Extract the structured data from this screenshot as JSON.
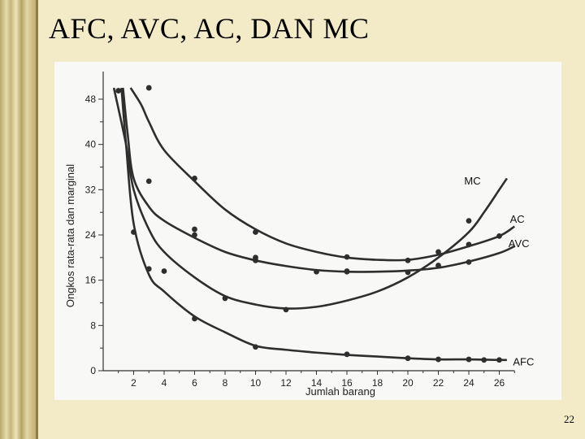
{
  "slide": {
    "title": "AFC, AVC, AC, DAN MC",
    "page_number": "22"
  },
  "chart_data": {
    "type": "line",
    "title": "",
    "xlabel": "Jumlah barang",
    "ylabel": "Ongkos rata-rata dan marginal",
    "xlim": [
      0,
      27
    ],
    "ylim": [
      0,
      50
    ],
    "x_ticks": [
      2,
      4,
      6,
      8,
      10,
      12,
      14,
      16,
      18,
      20,
      22,
      24,
      26
    ],
    "y_ticks": [
      0,
      8,
      16,
      24,
      32,
      40,
      48
    ],
    "grid": false,
    "series": [
      {
        "name": "MC",
        "color": "#2e2e2e",
        "curve": [
          [
            0.7,
            50
          ],
          [
            1.5,
            40
          ],
          [
            2,
            32
          ],
          [
            3,
            25
          ],
          [
            4,
            21
          ],
          [
            6,
            16.5
          ],
          [
            8,
            13.2
          ],
          [
            10,
            11.7
          ],
          [
            12,
            11
          ],
          [
            14,
            11.3
          ],
          [
            16,
            12.4
          ],
          [
            18,
            14
          ],
          [
            20,
            16.5
          ],
          [
            22,
            20
          ],
          [
            24,
            24.5
          ],
          [
            25,
            28
          ],
          [
            26,
            32
          ],
          [
            26.5,
            34
          ]
        ],
        "points": [
          [
            1,
            49.5
          ],
          [
            3,
            33.5
          ],
          [
            6,
            25
          ],
          [
            10,
            20
          ],
          [
            14,
            17.5
          ],
          [
            16,
            17.5
          ],
          [
            20,
            17.4
          ],
          [
            24,
            26.5
          ]
        ]
      },
      {
        "name": "AC",
        "color": "#2e2e2e",
        "curve": [
          [
            1.8,
            50
          ],
          [
            2.5,
            47
          ],
          [
            3,
            44
          ],
          [
            4,
            39
          ],
          [
            6,
            33.5
          ],
          [
            8,
            28.5
          ],
          [
            10,
            25
          ],
          [
            12,
            22.5
          ],
          [
            14,
            21
          ],
          [
            16,
            20
          ],
          [
            18,
            19.6
          ],
          [
            20,
            19.6
          ],
          [
            22,
            20.5
          ],
          [
            24,
            22
          ],
          [
            26,
            23.8
          ],
          [
            27,
            25.5
          ]
        ],
        "points": [
          [
            3,
            50
          ],
          [
            6,
            34
          ],
          [
            10,
            24.5
          ],
          [
            16,
            20.1
          ],
          [
            20,
            19.5
          ],
          [
            22,
            21
          ],
          [
            24,
            22.3
          ],
          [
            26,
            23.8
          ]
        ]
      },
      {
        "name": "AVC",
        "color": "#2e2e2e",
        "curve": [
          [
            1.3,
            50
          ],
          [
            1.6,
            42
          ],
          [
            2,
            34
          ],
          [
            3,
            29
          ],
          [
            4,
            26.5
          ],
          [
            6,
            23.5
          ],
          [
            8,
            21
          ],
          [
            10,
            19.5
          ],
          [
            12,
            18.5
          ],
          [
            14,
            17.8
          ],
          [
            16,
            17.5
          ],
          [
            18,
            17.5
          ],
          [
            20,
            17.7
          ],
          [
            22,
            18.2
          ],
          [
            24,
            19.3
          ],
          [
            26,
            20.8
          ],
          [
            27,
            22
          ]
        ],
        "points": [
          [
            6,
            24
          ],
          [
            10,
            19.5
          ],
          [
            16,
            17.6
          ],
          [
            22,
            18.6
          ],
          [
            24,
            19.2
          ]
        ]
      },
      {
        "name": "AFC",
        "color": "#2e2e2e",
        "curve": [
          [
            1.2,
            50
          ],
          [
            1.5,
            40
          ],
          [
            2,
            26
          ],
          [
            3,
            17
          ],
          [
            4,
            14
          ],
          [
            6,
            9.6
          ],
          [
            8,
            6.8
          ],
          [
            10,
            4.4
          ],
          [
            12,
            3.7
          ],
          [
            14,
            3.2
          ],
          [
            16,
            2.8
          ],
          [
            18,
            2.5
          ],
          [
            20,
            2.2
          ],
          [
            22,
            2
          ],
          [
            24,
            2
          ],
          [
            26,
            1.9
          ],
          [
            26.5,
            1.9
          ]
        ],
        "points": [
          [
            2,
            24.5
          ],
          [
            3,
            18
          ],
          [
            4,
            17.6
          ],
          [
            6,
            9.2
          ],
          [
            8,
            12.8
          ],
          [
            10,
            4.2
          ],
          [
            12,
            10.8
          ],
          [
            16,
            2.9
          ],
          [
            20,
            2.2
          ],
          [
            22,
            2
          ],
          [
            24,
            2
          ],
          [
            25,
            1.9
          ],
          [
            26,
            1.9
          ]
        ]
      }
    ]
  }
}
